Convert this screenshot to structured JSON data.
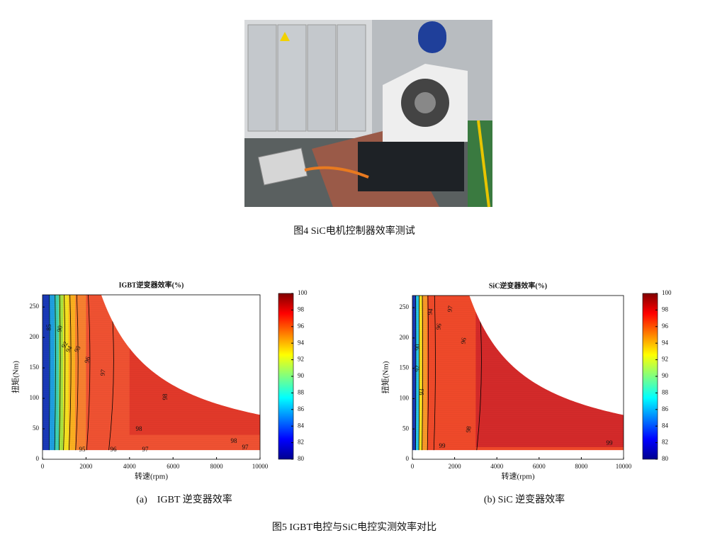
{
  "figure4_caption": "图4 SiC电机控制器效率测试",
  "figure5_caption": "图5 IGBT电控与SiC电控实测效率对比",
  "chart_data": [
    {
      "type": "contour",
      "title": "IGBT逆变器效率(%)",
      "subcaption": "(a)    IGBT 逆变器效率",
      "x_label": "转速(rpm)",
      "y_label": "扭矩(Nm)",
      "xlim": [
        0,
        10000
      ],
      "ylim": [
        0,
        270
      ],
      "xticks": [
        0,
        2000,
        4000,
        6000,
        8000,
        10000
      ],
      "yticks": [
        0,
        50,
        100,
        150,
        200,
        250
      ],
      "colorbar_lim": [
        80,
        100
      ],
      "colorbar_ticks": [
        80,
        82,
        84,
        86,
        88,
        90,
        92,
        94,
        96,
        98,
        100
      ],
      "contour_labels": [
        "85",
        "90",
        "92",
        "94",
        "95",
        "96",
        "97",
        "98",
        "98",
        "98",
        "97",
        "96",
        "97",
        "95"
      ]
    },
    {
      "type": "contour",
      "title": "SiC逆变器效率(%)",
      "subcaption": "(b) SiC 逆变器效率",
      "x_label": "转速(rpm)",
      "y_label": "扭矩(Nm)",
      "xlim": [
        0,
        10000
      ],
      "ylim": [
        0,
        270
      ],
      "xticks": [
        0,
        2000,
        4000,
        6000,
        8000,
        10000
      ],
      "yticks": [
        0,
        50,
        100,
        150,
        200,
        250
      ],
      "colorbar_lim": [
        80,
        100
      ],
      "colorbar_ticks": [
        80,
        82,
        84,
        86,
        88,
        90,
        92,
        94,
        96,
        98,
        100
      ],
      "contour_labels": [
        "94",
        "97",
        "96",
        "96",
        "90",
        "92",
        "93",
        "98",
        "99",
        "99"
      ]
    }
  ]
}
